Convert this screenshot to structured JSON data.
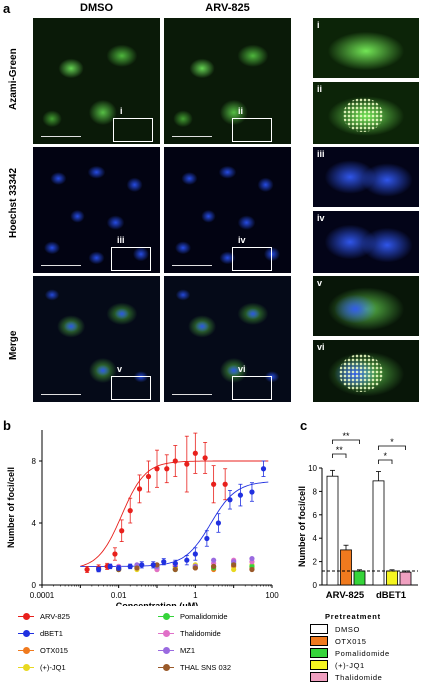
{
  "panel_a": {
    "letter": "a",
    "columns": [
      "DMSO",
      "ARV-825"
    ],
    "rows": [
      "Azami-Green",
      "Hoechst 33342",
      "Merge"
    ],
    "roi_labels": [
      "i",
      "ii",
      "iii",
      "iv",
      "v",
      "vi"
    ],
    "zoom_labels": [
      "i",
      "ii",
      "iii",
      "iv",
      "v",
      "vi"
    ]
  },
  "panel_b": {
    "letter": "b"
  },
  "panel_c": {
    "letter": "c"
  },
  "legend_b": [
    {
      "label": "ARV-825",
      "color": "#e8201c"
    },
    {
      "label": "Pomalidomide",
      "color": "#35d43a"
    },
    {
      "label": "dBET1",
      "color": "#2030e0"
    },
    {
      "label": "Thalidomide",
      "color": "#e070c8"
    },
    {
      "label": "OTX015",
      "color": "#f07a1e"
    },
    {
      "label": "MZ1",
      "color": "#9a6ae0"
    },
    {
      "label": "(+)-JQ1",
      "color": "#e8d820"
    },
    {
      "label": "THAL SNS 032",
      "color": "#9a5a2a"
    }
  ],
  "pretreatment": {
    "title": "Pretreatment",
    "items": [
      {
        "label": "DMSO",
        "color": "#ffffff"
      },
      {
        "label": "OTX015",
        "color": "#f07a1e"
      },
      {
        "label": "Pomalidomide",
        "color": "#35d43a"
      },
      {
        "label": "(+)-JQ1",
        "color": "#f5f520"
      },
      {
        "label": "Thalidomide",
        "color": "#f0a0c0"
      }
    ]
  },
  "chart_data": [
    {
      "type": "scatter",
      "panel": "b",
      "xlabel": "Concentration (μM)",
      "ylabel": "Number of foci/cell",
      "xscale": "log",
      "xlim": [
        0.0001,
        100
      ],
      "ylim": [
        0,
        10
      ],
      "xticks": [
        "0.0001",
        "0.01",
        "1",
        "100"
      ],
      "yticks": [
        "0",
        "4",
        "8"
      ],
      "series": [
        {
          "name": "ARV-825",
          "color": "#e8201c",
          "x": [
            0.0015,
            0.003,
            0.005,
            0.008,
            0.012,
            0.02,
            0.035,
            0.06,
            0.1,
            0.18,
            0.3,
            0.6,
            1.0,
            1.8,
            3.0,
            6.0
          ],
          "y": [
            1.0,
            1.1,
            1.2,
            2.0,
            3.5,
            4.8,
            6.2,
            7.0,
            7.5,
            7.5,
            8.0,
            7.8,
            8.5,
            8.2,
            6.5,
            6.5
          ],
          "err": [
            0.2,
            0.2,
            0.2,
            0.4,
            0.7,
            0.8,
            0.9,
            1.0,
            1.2,
            0.9,
            1.0,
            1.8,
            1.3,
            1.0,
            1.2,
            1.0
          ]
        },
        {
          "name": "dBET1",
          "color": "#2030e0",
          "x": [
            0.003,
            0.006,
            0.01,
            0.02,
            0.04,
            0.08,
            0.15,
            0.3,
            0.6,
            1.0,
            2.0,
            4.0,
            8.0,
            15,
            30,
            60
          ],
          "y": [
            1.0,
            1.2,
            1.1,
            1.2,
            1.3,
            1.3,
            1.5,
            1.4,
            1.6,
            2.0,
            3.0,
            4.0,
            5.5,
            5.8,
            6.0,
            7.5
          ],
          "err": [
            0.15,
            0.15,
            0.15,
            0.15,
            0.2,
            0.2,
            0.2,
            0.2,
            0.3,
            0.4,
            0.5,
            0.6,
            0.6,
            0.7,
            0.6,
            0.5
          ]
        },
        {
          "name": "OTX015",
          "color": "#f07a1e",
          "x": [
            0.01,
            0.03,
            0.1,
            0.3,
            1,
            3,
            10,
            30
          ],
          "y": [
            1.0,
            1.1,
            1.0,
            1.2,
            1.1,
            1.0,
            1.2,
            1.1
          ],
          "err": []
        },
        {
          "name": "(+)-JQ1",
          "color": "#e8d820",
          "x": [
            0.01,
            0.03,
            0.1,
            0.3,
            1,
            3,
            10,
            30
          ],
          "y": [
            1.1,
            1.0,
            1.2,
            1.1,
            1.3,
            1.2,
            1.0,
            1.3
          ],
          "err": []
        },
        {
          "name": "Pomalidomide",
          "color": "#35d43a",
          "x": [
            0.01,
            0.03,
            0.1,
            0.3,
            1,
            3,
            10,
            30
          ],
          "y": [
            1.0,
            1.2,
            1.1,
            1.0,
            1.2,
            1.1,
            1.4,
            1.2
          ],
          "err": []
        },
        {
          "name": "Thalidomide",
          "color": "#e070c8",
          "x": [
            0.01,
            0.03,
            0.1,
            0.3,
            1,
            3,
            10,
            30
          ],
          "y": [
            1.2,
            1.1,
            1.0,
            1.3,
            1.2,
            1.4,
            1.6,
            1.5
          ],
          "err": []
        },
        {
          "name": "MZ1",
          "color": "#9a6ae0",
          "x": [
            0.01,
            0.03,
            0.1,
            0.3,
            1,
            3,
            10,
            30
          ],
          "y": [
            1.1,
            1.3,
            1.2,
            1.4,
            1.2,
            1.6,
            1.5,
            1.7
          ],
          "err": []
        },
        {
          "name": "THAL SNS 032",
          "color": "#9a5a2a",
          "x": [
            0.01,
            0.03,
            0.1,
            0.3,
            1,
            3,
            10,
            30
          ],
          "y": [
            1.0,
            1.1,
            1.3,
            1.0,
            1.1,
            1.2,
            1.3,
            1.0
          ],
          "err": []
        }
      ],
      "fits": [
        {
          "name": "ARV-825",
          "color": "#e8201c",
          "bottom": 1.0,
          "top": 8.0,
          "ec50": 0.012,
          "hill": 1.4
        },
        {
          "name": "dBET1",
          "color": "#2030e0",
          "bottom": 1.2,
          "top": 6.7,
          "ec50": 2.5,
          "hill": 1.3
        }
      ]
    },
    {
      "type": "bar",
      "panel": "c",
      "ylabel": "Number of foci/cell",
      "ylim": [
        0,
        10
      ],
      "yticks": [
        "0",
        "2",
        "4",
        "6",
        "8",
        "10"
      ],
      "categories": [
        "ARV-825",
        "dBET1"
      ],
      "series": [
        {
          "name": "DMSO",
          "color": "#ffffff",
          "values": [
            9.3,
            8.9
          ],
          "err": [
            0.5,
            0.8
          ]
        },
        {
          "name": "OTX015",
          "color": "#f07a1e",
          "values": [
            3.0,
            null
          ],
          "err": [
            0.4,
            null
          ]
        },
        {
          "name": "Pomalidomide",
          "color": "#35d43a",
          "values": [
            1.2,
            null
          ],
          "err": [
            0.1,
            null
          ]
        },
        {
          "name": "(+)-JQ1",
          "color": "#f5f520",
          "values": [
            null,
            1.2
          ],
          "err": [
            null,
            0.1
          ]
        },
        {
          "name": "Thalidomide",
          "color": "#f0a0c0",
          "values": [
            null,
            1.1
          ],
          "err": [
            null,
            0.1
          ]
        }
      ],
      "baseline": 1.2,
      "significance": [
        {
          "category": "ARV-825",
          "label": "**",
          "from": "DMSO",
          "to": "Pomalidomide"
        },
        {
          "category": "ARV-825",
          "label": "**",
          "from": "DMSO",
          "to": "OTX015"
        },
        {
          "category": "dBET1",
          "label": "*",
          "from": "DMSO",
          "to": "Thalidomide"
        },
        {
          "category": "dBET1",
          "label": "*",
          "from": "DMSO",
          "to": "(+)-JQ1"
        }
      ]
    }
  ]
}
